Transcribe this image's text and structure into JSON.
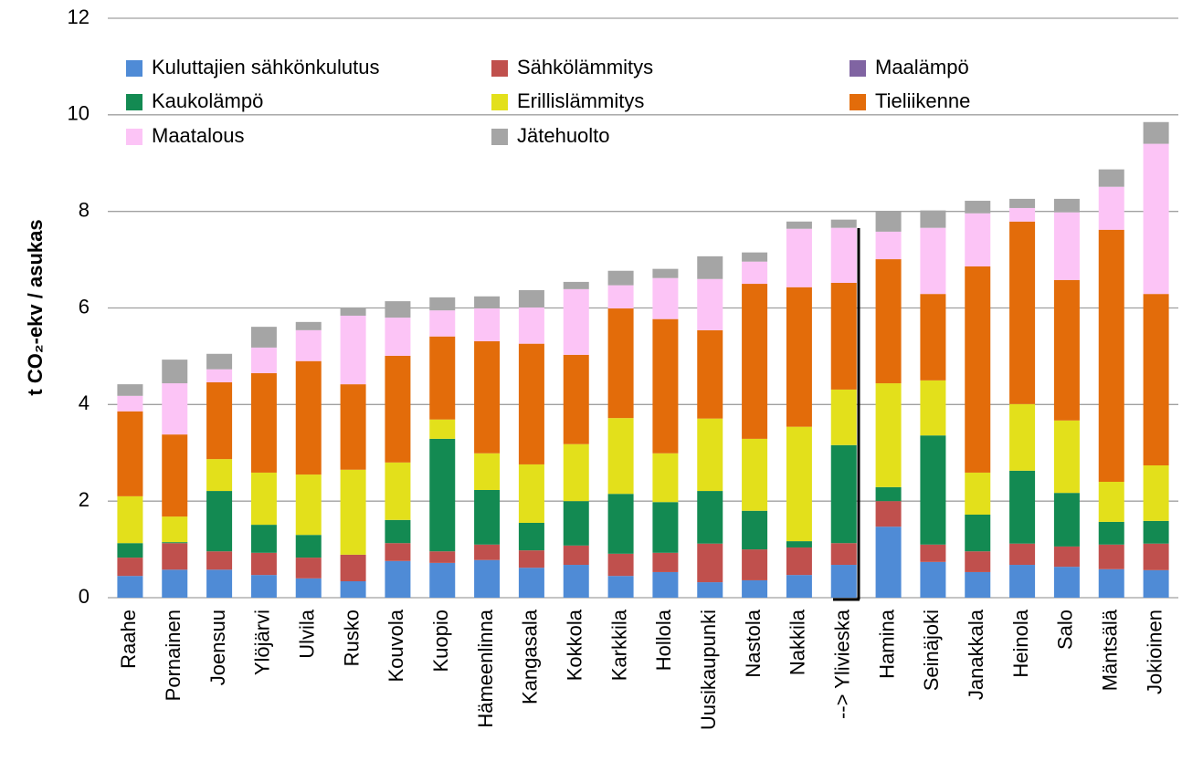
{
  "chart_data": {
    "type": "stacked_bar",
    "y_label": "t CO₂-ekv / asukas",
    "categories": [
      "Raahe",
      "Pornainen",
      "Joensuu",
      "Ylöjärvi",
      "Ulvila",
      "Rusko",
      "Kouvola",
      "Kuopio",
      "Hämeenlinna",
      "Kangasala",
      "Kokkola",
      "Karkkila",
      "Hollola",
      "Uusikaupunki",
      "Nastola",
      "Nakkila",
      "--> Ylivieska",
      "Hamina",
      "Seinäjoki",
      "Janakkala",
      "Heinola",
      "Salo",
      "Mäntsälä",
      "Jokioinen"
    ],
    "series": [
      {
        "name": "Kuluttajien sähkönkulutus",
        "color": "#4f8bd6",
        "values": [
          0.45,
          0.58,
          0.58,
          0.47,
          0.4,
          0.34,
          0.76,
          0.72,
          0.78,
          0.62,
          0.68,
          0.45,
          0.53,
          0.32,
          0.36,
          0.47,
          0.68,
          1.47,
          0.74,
          0.53,
          0.68,
          0.64,
          0.59,
          0.57
        ]
      },
      {
        "name": "Sähkölämmitys",
        "color": "#c0504d",
        "values": [
          0.38,
          0.55,
          0.38,
          0.46,
          0.43,
          0.55,
          0.37,
          0.24,
          0.32,
          0.36,
          0.4,
          0.46,
          0.4,
          0.8,
          0.64,
          0.57,
          0.45,
          0.53,
          0.36,
          0.43,
          0.44,
          0.42,
          0.51,
          0.55
        ]
      },
      {
        "name": "Maalämpö",
        "color": "#8064a2",
        "values": [
          0,
          0,
          0,
          0,
          0,
          0,
          0,
          0,
          0,
          0,
          0,
          0,
          0,
          0,
          0,
          0,
          0,
          0,
          0,
          0,
          0,
          0,
          0,
          0
        ]
      },
      {
        "name": "Kaukolämpö",
        "color": "#138a52",
        "values": [
          0.3,
          0.02,
          1.25,
          0.58,
          0.47,
          0,
          0.48,
          2.33,
          1.13,
          0.57,
          0.92,
          1.24,
          1.05,
          1.09,
          0.8,
          0.13,
          2.03,
          0.29,
          2.26,
          0.76,
          1.51,
          1.11,
          0.47,
          0.47
        ]
      },
      {
        "name": "Erillislämmitys",
        "color": "#e3e01b",
        "values": [
          0.97,
          0.53,
          0.66,
          1.08,
          1.25,
          1.76,
          1.19,
          0.4,
          0.76,
          1.21,
          1.18,
          1.57,
          1.01,
          1.5,
          1.49,
          2.37,
          1.15,
          2.15,
          1.14,
          0.87,
          1.38,
          1.5,
          0.83,
          1.15
        ]
      },
      {
        "name": "Tieliikenne",
        "color": "#e36c0a",
        "values": [
          1.76,
          1.7,
          1.59,
          2.06,
          2.35,
          1.77,
          2.21,
          1.72,
          2.32,
          2.5,
          1.85,
          2.27,
          2.78,
          1.83,
          3.21,
          2.89,
          2.21,
          2.57,
          1.79,
          4.27,
          3.78,
          2.91,
          5.22,
          3.55
        ]
      },
      {
        "name": "Maatalous",
        "color": "#fcc4f6",
        "values": [
          0.32,
          1.06,
          0.27,
          0.53,
          0.64,
          1.42,
          0.79,
          0.54,
          0.68,
          0.75,
          1.36,
          0.48,
          0.85,
          1.06,
          0.46,
          1.21,
          1.14,
          0.57,
          1.37,
          1.1,
          0.28,
          1.4,
          0.89,
          3.11
        ]
      },
      {
        "name": "Jätehuolto",
        "color": "#a5a5a5",
        "values": [
          0.24,
          0.49,
          0.32,
          0.43,
          0.17,
          0.17,
          0.34,
          0.27,
          0.25,
          0.36,
          0.15,
          0.3,
          0.19,
          0.47,
          0.19,
          0.15,
          0.17,
          0.42,
          0.36,
          0.26,
          0.19,
          0.28,
          0.36,
          0.45
        ]
      }
    ],
    "ylim": [
      0,
      12
    ],
    "yticks": [
      0,
      2,
      4,
      6,
      8,
      10,
      12
    ],
    "grid": true
  }
}
